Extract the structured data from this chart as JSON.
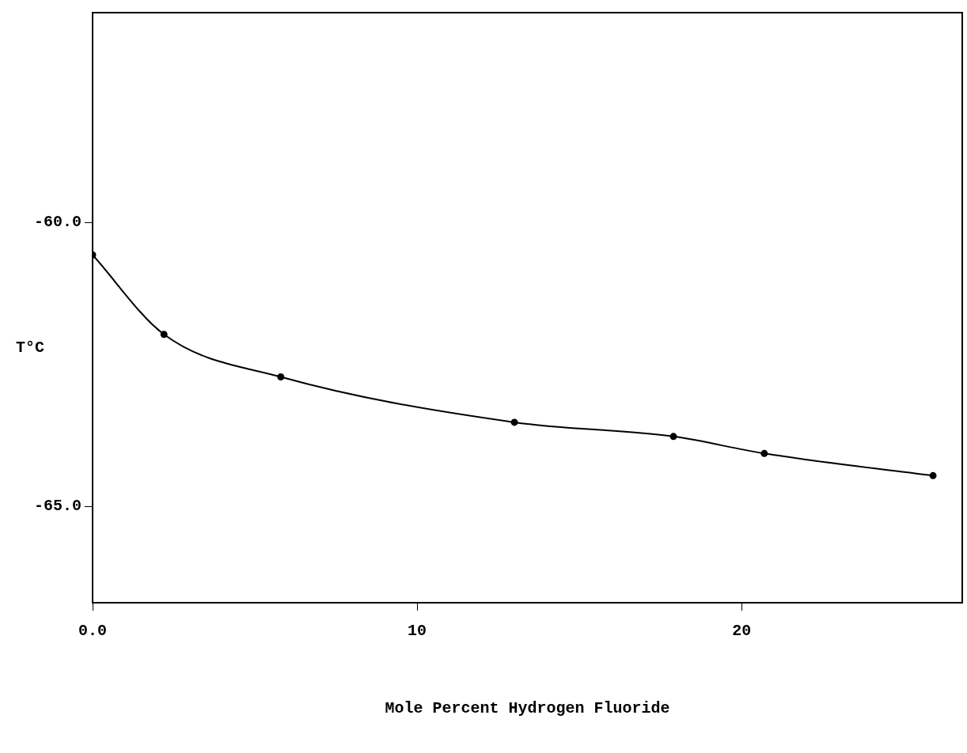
{
  "chart_data": {
    "type": "line",
    "xlabel": "Mole Percent Hydrogen Fluoride",
    "ylabel": "T°C",
    "x": [
      0,
      2.2,
      5.8,
      13.0,
      17.9,
      20.7,
      25.9
    ],
    "series": [
      {
        "color": "#000000",
        "values": [
          -60.57,
          -61.97,
          -62.72,
          -63.52,
          -63.77,
          -64.07,
          -64.46
        ]
      }
    ],
    "xlim": [
      0,
      26.8
    ],
    "xticks": [
      {
        "value": 0,
        "label": "0.0"
      },
      10,
      20
    ],
    "ylim": [
      -66.7,
      -56.3
    ],
    "yticks": [
      {
        "value": -60,
        "label": "-60.0"
      },
      {
        "value": -65,
        "label": "-65.0"
      }
    ],
    "marker": "circle",
    "line_style": "solid",
    "grid": false,
    "legend": false
  }
}
